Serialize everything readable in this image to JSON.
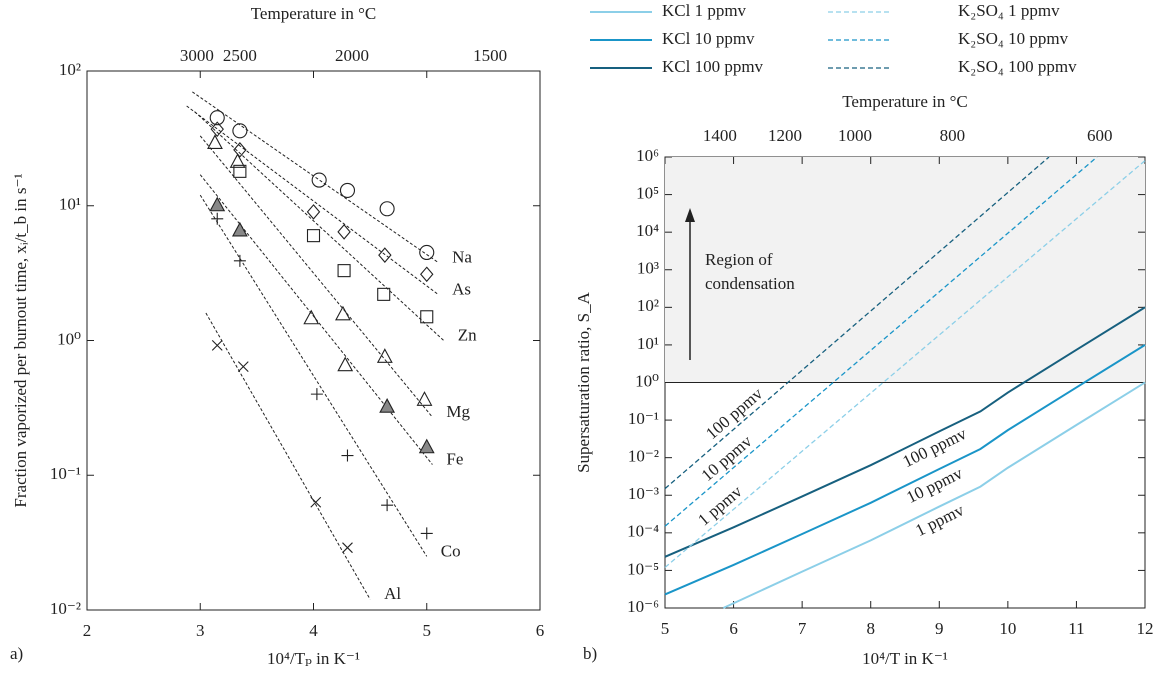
{
  "chart_data": [
    {
      "type": "scatter",
      "panel_label": "a)",
      "xlabel": "10⁴/Tₚ in K⁻¹",
      "ylabel": "Fraction vaporized per burnout time, xᵢ/t_b in s⁻¹",
      "x2label": "Temperature in °C",
      "xlim": [
        2,
        6
      ],
      "xticks": [
        2,
        3,
        4,
        5,
        6
      ],
      "ylim": [
        0.01,
        100
      ],
      "yscale": "log",
      "yticks": [
        {
          "value": 0.01,
          "label": "10⁻²"
        },
        {
          "value": 0.1,
          "label": "10⁻¹"
        },
        {
          "value": 1,
          "label": "10⁰"
        },
        {
          "value": 10,
          "label": "10¹"
        },
        {
          "value": 100,
          "label": "10²"
        }
      ],
      "x2ticks": [
        {
          "value": 2.97,
          "label": "3000"
        },
        {
          "value": 3.35,
          "label": "2500"
        },
        {
          "value": 4.34,
          "label": "2000"
        },
        {
          "value": 5.56,
          "label": "1500"
        }
      ],
      "series": [
        {
          "name": "Na",
          "marker": "circle",
          "x": [
            3.15,
            3.35,
            4.05,
            4.3,
            4.65,
            5.0
          ],
          "values": [
            45,
            36,
            15.5,
            13,
            9.5,
            4.5
          ],
          "fit_x": [
            2.93,
            5.1
          ],
          "fit_values": [
            70,
            3.8
          ]
        },
        {
          "name": "As",
          "marker": "diamond",
          "x": [
            3.15,
            3.35,
            4.0,
            4.27,
            4.63,
            5.0
          ],
          "values": [
            37,
            26,
            9,
            6.4,
            4.3,
            3.1
          ],
          "fit_x": [
            2.88,
            5.1
          ],
          "fit_values": [
            55,
            2.2
          ]
        },
        {
          "name": "Zn",
          "marker": "square",
          "x": [
            3.35,
            4.0,
            4.27,
            4.62,
            5.0
          ],
          "values": [
            18,
            6,
            3.3,
            2.2,
            1.5
          ],
          "fit_x": [
            2.95,
            5.15
          ],
          "fit_values": [
            50,
            1.0
          ]
        },
        {
          "name": "Mg",
          "marker": "triangle",
          "x": [
            3.13,
            3.33,
            3.98,
            4.26,
            4.28,
            4.63,
            4.98
          ],
          "values": [
            29,
            21,
            1.45,
            1.55,
            0.65,
            0.75,
            0.36
          ],
          "fit_x": [
            3.0,
            5.05
          ],
          "fit_values": [
            33,
            0.27
          ]
        },
        {
          "name": "Fe",
          "marker": "filled-triangle",
          "x": [
            3.15,
            3.35,
            4.65,
            5.0
          ],
          "values": [
            10,
            6.5,
            0.32,
            0.16
          ],
          "fit_x": [
            3.0,
            5.05
          ],
          "fit_values": [
            17,
            0.12
          ]
        },
        {
          "name": "Co",
          "marker": "plus",
          "x": [
            3.15,
            3.35,
            4.03,
            4.3,
            4.65,
            5.0
          ],
          "values": [
            8,
            3.9,
            0.4,
            0.14,
            0.06,
            0.037
          ],
          "fit_x": [
            3.0,
            5.0
          ],
          "fit_values": [
            12,
            0.025
          ]
        },
        {
          "name": "Al",
          "marker": "cross",
          "x": [
            3.15,
            3.38,
            4.02,
            4.3
          ],
          "values": [
            0.92,
            0.64,
            0.063,
            0.029
          ],
          "fit_x": [
            3.05,
            4.5
          ],
          "fit_values": [
            1.6,
            0.012
          ]
        }
      ]
    },
    {
      "type": "line",
      "panel_label": "b)",
      "xlabel": "10⁴/T in K⁻¹",
      "ylabel": "Supersaturation ratio, S_A",
      "x2label": "Temperature in °C",
      "xlim": [
        5,
        12
      ],
      "xticks": [
        5,
        6,
        7,
        8,
        9,
        10,
        11,
        12
      ],
      "ylim": [
        1e-06,
        1000000
      ],
      "yscale": "log",
      "yticks": [
        {
          "value": 1e-06,
          "label": "10⁻⁶"
        },
        {
          "value": 1e-05,
          "label": "10⁻⁵"
        },
        {
          "value": 0.0001,
          "label": "10⁻⁴"
        },
        {
          "value": 0.001,
          "label": "10⁻³"
        },
        {
          "value": 0.01,
          "label": "10⁻²"
        },
        {
          "value": 0.1,
          "label": "10⁻¹"
        },
        {
          "value": 1,
          "label": "10⁰"
        },
        {
          "value": 10,
          "label": "10¹"
        },
        {
          "value": 100,
          "label": "10²"
        },
        {
          "value": 1000,
          "label": "10³"
        },
        {
          "value": 10000,
          "label": "10⁴"
        },
        {
          "value": 100000,
          "label": "10⁵"
        },
        {
          "value": 1000000,
          "label": "10⁶"
        }
      ],
      "x2ticks": [
        {
          "value": 5.8,
          "label": "1400"
        },
        {
          "value": 6.75,
          "label": "1200"
        },
        {
          "value": 7.77,
          "label": "1000"
        },
        {
          "value": 9.19,
          "label": "800"
        },
        {
          "value": 11.34,
          "label": "600"
        }
      ],
      "threshold": 1,
      "annotation": [
        "Region of",
        "condensation"
      ],
      "series": [
        {
          "name": "KCl 1 ppmv",
          "line_label": "1 ppmv",
          "color": "#8ccfe8",
          "dashed": false,
          "x": [
            5.85,
            7,
            8,
            9,
            9.6,
            10,
            11,
            12
          ],
          "values": [
            1e-06,
            9.3e-06,
            6.3e-05,
            0.0005,
            0.0017,
            0.0054,
            0.074,
            1
          ]
        },
        {
          "name": "KCl 10 ppmv",
          "line_label": "10 ppmv",
          "color": "#1a95c8",
          "dashed": false,
          "x": [
            5,
            6,
            7,
            8,
            9,
            9.6,
            10,
            11,
            12
          ],
          "values": [
            2.3e-06,
            1.4e-05,
            9.3e-05,
            0.00063,
            0.005,
            0.017,
            0.054,
            0.74,
            10
          ]
        },
        {
          "name": "KCl 100 ppmv",
          "line_label": "100 ppmv",
          "color": "#17607f",
          "dashed": false,
          "x": [
            5,
            6,
            7,
            8,
            9,
            9.6,
            10,
            11,
            12
          ],
          "values": [
            2.3e-05,
            0.00014,
            0.00093,
            0.0063,
            0.05,
            0.17,
            0.54,
            7.4,
            100
          ]
        },
        {
          "name": "K₂SO₄ 1 ppmv",
          "line_label": "1 ppmv",
          "color": "#8ccfe8",
          "dashed": true,
          "x": [
            5,
            12
          ],
          "values": [
            1.2e-05,
            800000
          ]
        },
        {
          "name": "K₂SO₄ 10 ppmv",
          "line_label": "10 ppmv",
          "color": "#1a95c8",
          "dashed": true,
          "x": [
            5,
            11.3
          ],
          "values": [
            0.00015,
            1000000
          ]
        },
        {
          "name": "K₂SO₄ 100 ppmv",
          "line_label": "100 ppmv",
          "color": "#17607f",
          "dashed": true,
          "x": [
            5,
            10.6
          ],
          "values": [
            0.0015,
            1000000
          ]
        }
      ]
    }
  ]
}
